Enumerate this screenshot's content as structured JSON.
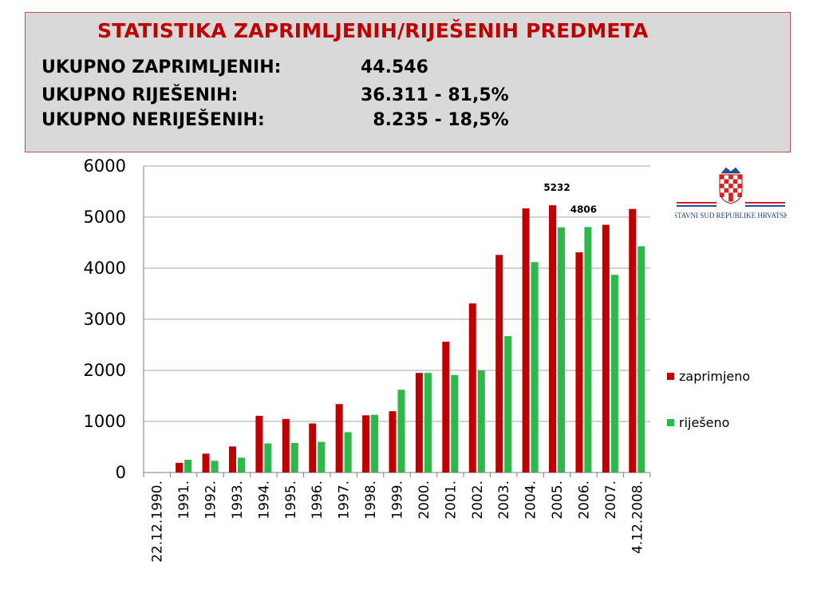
{
  "header": {
    "title": "STATISTIKA ZAPRIMLJENIH/RIJEŠENIH PREDMETA",
    "stats": [
      {
        "label": "UKUPNO ZAPRIMLJENIH:",
        "value": "44.546"
      },
      {
        "label": "UKUPNO RIJEŠENIH:",
        "value": "36.311 - 81,5%"
      },
      {
        "label": "UKUPNO NERIJEŠENIH:",
        "value": "  8.235 - 18,5%"
      }
    ]
  },
  "logo": {
    "caption": "USTAVNI SUD REPUBLIKE HRVATSKE"
  },
  "colors": {
    "received": "#c00000",
    "resolved": "#2eb84a",
    "title": "#c00000",
    "box_border": "#c0504d"
  },
  "chart_data": {
    "type": "bar",
    "categories": [
      "22.12.1990.",
      "1991.",
      "1992.",
      "1993.",
      "1994.",
      "1995.",
      "1996.",
      "1997.",
      "1998.",
      "1999.",
      "2000.",
      "2001.",
      "2002.",
      "2003.",
      "2004.",
      "2005.",
      "2006.",
      "2007.",
      "4.12.2008."
    ],
    "series": [
      {
        "name": "zaprimjeno",
        "values": [
          0,
          190,
          370,
          510,
          1110,
          1050,
          960,
          1340,
          1120,
          1200,
          1950,
          2560,
          3310,
          4260,
          5170,
          5232,
          4310,
          4850,
          5160
        ]
      },
      {
        "name": "riješeno",
        "values": [
          0,
          250,
          230,
          290,
          570,
          580,
          600,
          790,
          1130,
          1620,
          1950,
          1910,
          2000,
          2670,
          4120,
          4800,
          4806,
          3870,
          4430
        ]
      }
    ],
    "data_labels": [
      {
        "series": 0,
        "index": 15,
        "text": "5232"
      },
      {
        "series": 1,
        "index": 16,
        "text": "4806"
      }
    ],
    "yticks": [
      "0",
      "1000",
      "2000",
      "3000",
      "4000",
      "5000",
      "6000"
    ],
    "ylim": [
      0,
      6000
    ],
    "grid": true,
    "legend": "right"
  }
}
